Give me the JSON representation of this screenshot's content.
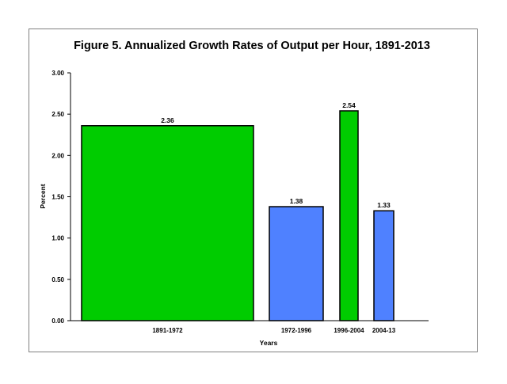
{
  "chart_data": {
    "type": "bar",
    "title": "Figure 5. Annualized Growth Rates of Output per Hour, 1891-2013",
    "xlabel": "Years",
    "ylabel": "Percent",
    "ylim": [
      0,
      3.0
    ],
    "yticks": [
      "0.00",
      "0.50",
      "1.00",
      "1.50",
      "2.00",
      "2.50",
      "3.00"
    ],
    "categories": [
      "1891-1972",
      "1972-1996",
      "1996-2004",
      "2004-13"
    ],
    "values": [
      2.36,
      1.38,
      2.54,
      1.33
    ],
    "value_labels": [
      "2.36",
      "1.38",
      "2.54",
      "1.33"
    ],
    "bar_colors": [
      "#00cc00",
      "#4f81ff",
      "#00cc00",
      "#4f81ff"
    ],
    "grid": false,
    "legend": "none"
  }
}
